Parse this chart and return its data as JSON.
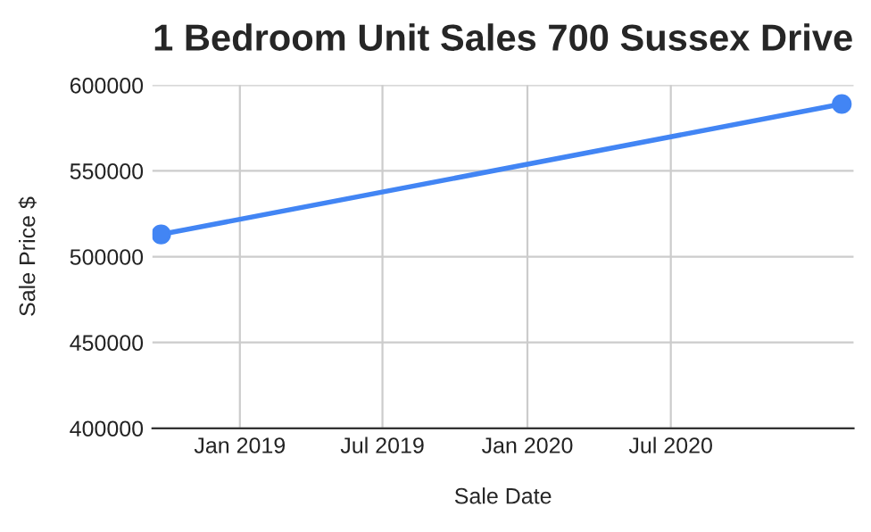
{
  "chart_data": {
    "type": "line",
    "title": "1 Bedroom Unit Sales 700 Sussex Drive",
    "xlabel": "Sale Date",
    "ylabel": "Sale Price $",
    "x": [
      "2018-09-23",
      "2021-02-03"
    ],
    "series": [
      {
        "color": "#4285f4",
        "values": [
          513000,
          589000
        ]
      }
    ],
    "xlim": [
      "2018-09-12",
      "2021-02-18"
    ],
    "xticks": [
      {
        "value": "2019-01-01",
        "label": "Jan 2019"
      },
      {
        "value": "2019-07-01",
        "label": "Jul 2019"
      },
      {
        "value": "2020-01-01",
        "label": "Jan 2020"
      },
      {
        "value": "2020-07-01",
        "label": "Jul 2020"
      }
    ],
    "ylim": [
      400000,
      600000
    ],
    "yticks": [
      400000,
      450000,
      500000,
      550000,
      600000
    ],
    "grid": true,
    "marker": "circle",
    "line_style": "solid",
    "legend": false
  }
}
